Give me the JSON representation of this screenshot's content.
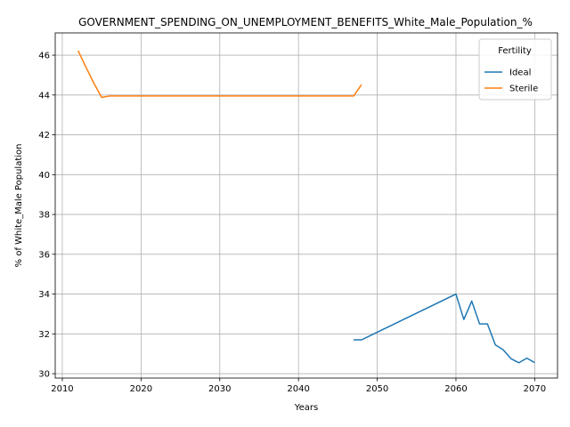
{
  "chart_data": {
    "type": "line",
    "title": "GOVERNMENT_SPENDING_ON_UNEMPLOYMENT_BENEFITS_White_Male_Population_%",
    "xlabel": "Years",
    "ylabel": "% of White_Male Population",
    "xlim": [
      2009.1,
      2072.9
    ],
    "ylim": [
      29.78,
      47.12
    ],
    "xticks": [
      2010,
      2020,
      2030,
      2040,
      2050,
      2060,
      2070
    ],
    "yticks": [
      30,
      32,
      34,
      36,
      38,
      40,
      42,
      44,
      46
    ],
    "grid": true,
    "legend": {
      "title": "Fertility",
      "position": "top-right"
    },
    "series": [
      {
        "name": "Ideal",
        "color": "#1f77b4",
        "x": [
          2047,
          2048,
          2060,
          2061,
          2062,
          2063,
          2064,
          2065,
          2066,
          2067,
          2068,
          2069,
          2070
        ],
        "y": [
          31.7,
          31.7,
          34.0,
          32.72,
          33.65,
          32.5,
          32.5,
          31.45,
          31.2,
          30.75,
          30.55,
          30.78,
          30.56
        ]
      },
      {
        "name": "Sterile",
        "color": "#ff7f0e",
        "x": [
          2012,
          2013,
          2014,
          2015,
          2016,
          2020,
          2030,
          2040,
          2047,
          2048
        ],
        "y": [
          46.23,
          45.4,
          44.6,
          43.88,
          43.95,
          43.95,
          43.95,
          43.95,
          43.95,
          44.52
        ]
      }
    ]
  }
}
